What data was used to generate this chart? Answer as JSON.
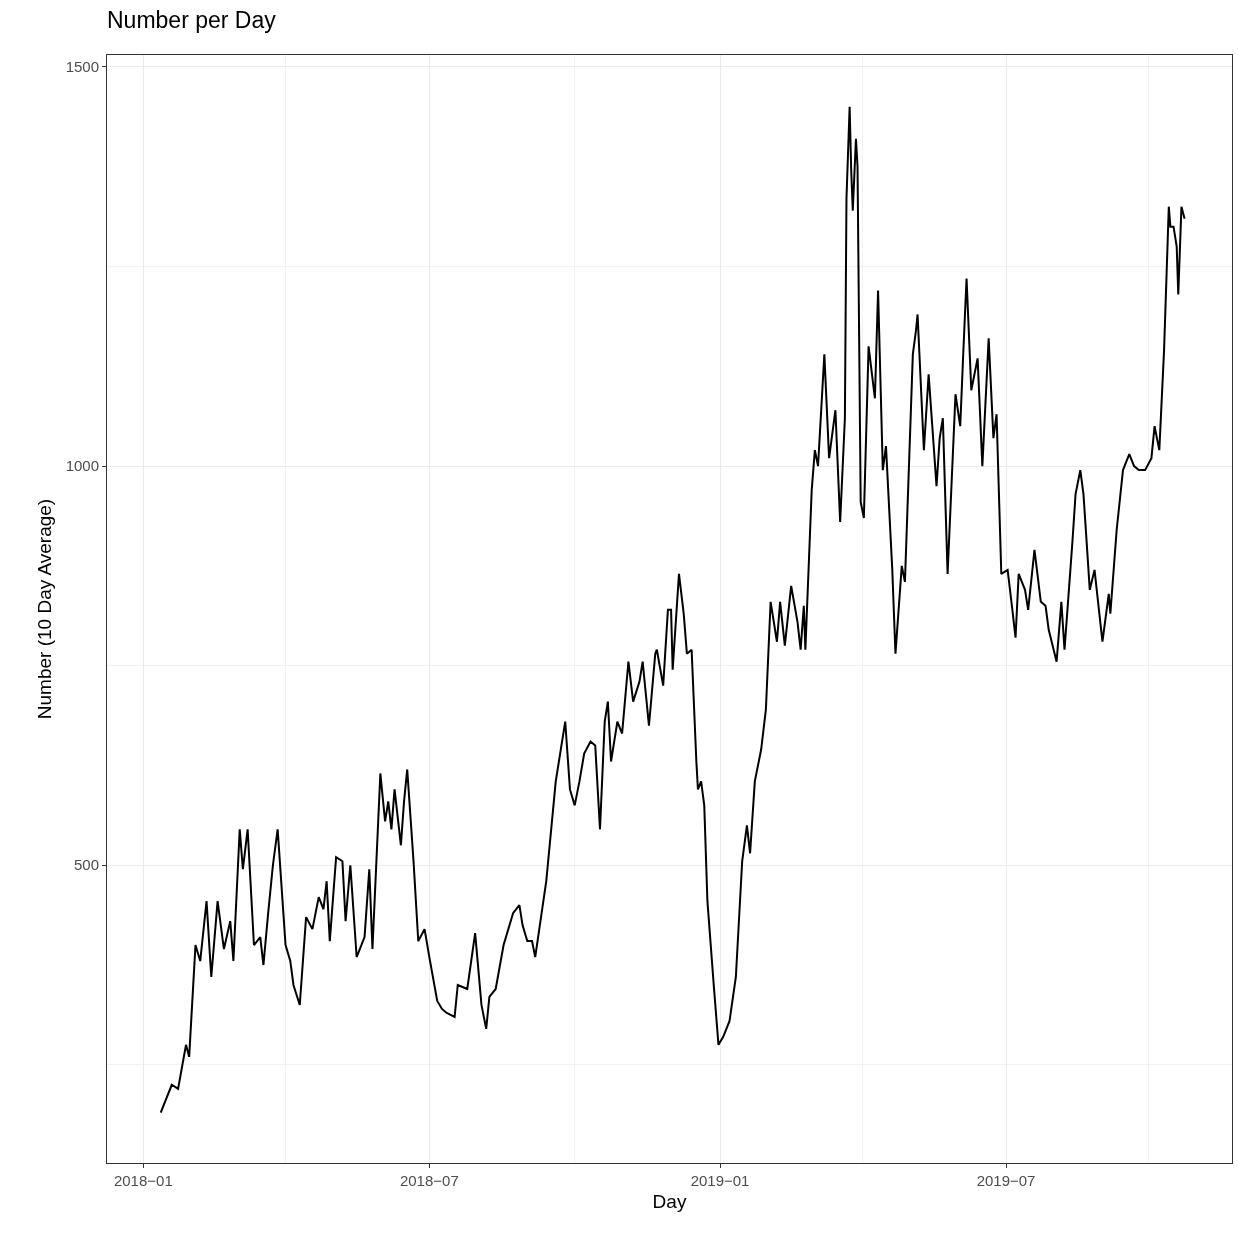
{
  "chart_data": {
    "type": "line",
    "title": "Number per Day",
    "xlabel": "Day",
    "ylabel": "Number (10 Day Average)",
    "xlim": [
      "2017-12-09",
      "2019-11-21"
    ],
    "ylim": [
      127,
      1515
    ],
    "xticks": [
      {
        "value": "2018-01-01",
        "label": "2018−01"
      },
      {
        "value": "2018-07-01",
        "label": "2018−07"
      },
      {
        "value": "2019-01-01",
        "label": "2019−01"
      },
      {
        "value": "2019-07-01",
        "label": "2019−07"
      }
    ],
    "yticks": [
      500,
      1000,
      1500
    ],
    "grid": true,
    "line_style": "solid",
    "marker": "none",
    "series": [
      {
        "color": "#000000",
        "x": [
          "2018-01-12",
          "2018-01-19",
          "2018-01-23",
          "2018-01-28",
          "2018-01-30",
          "2018-02-03",
          "2018-02-06",
          "2018-02-10",
          "2018-02-13",
          "2018-02-17",
          "2018-02-21",
          "2018-02-25",
          "2018-02-27",
          "2018-03-03",
          "2018-03-05",
          "2018-03-08",
          "2018-03-12",
          "2018-03-16",
          "2018-03-18",
          "2018-03-21",
          "2018-03-24",
          "2018-03-27",
          "2018-04-01",
          "2018-04-04",
          "2018-04-06",
          "2018-04-10",
          "2018-04-12",
          "2018-04-14",
          "2018-04-18",
          "2018-04-22",
          "2018-04-25",
          "2018-04-27",
          "2018-04-29",
          "2018-05-03",
          "2018-05-07",
          "2018-05-09",
          "2018-05-12",
          "2018-05-16",
          "2018-05-21",
          "2018-05-24",
          "2018-05-26",
          "2018-05-31",
          "2018-06-03",
          "2018-06-05",
          "2018-06-07",
          "2018-06-09",
          "2018-06-13",
          "2018-06-15",
          "2018-06-17",
          "2018-06-21",
          "2018-06-24",
          "2018-06-28",
          "2018-07-01",
          "2018-07-06",
          "2018-07-09",
          "2018-07-12",
          "2018-07-17",
          "2018-07-19",
          "2018-07-25",
          "2018-07-30",
          "2018-08-03",
          "2018-08-06",
          "2018-08-08",
          "2018-08-12",
          "2018-08-17",
          "2018-08-23",
          "2018-08-27",
          "2018-08-29",
          "2018-09-01",
          "2018-09-04",
          "2018-09-06",
          "2018-09-13",
          "2018-09-19",
          "2018-09-25",
          "2018-09-28",
          "2018-10-01",
          "2018-10-04",
          "2018-10-07",
          "2018-10-11",
          "2018-10-14",
          "2018-10-17",
          "2018-10-20",
          "2018-10-22",
          "2018-10-24",
          "2018-10-28",
          "2018-10-31",
          "2018-11-04",
          "2018-11-07",
          "2018-11-11",
          "2018-11-13",
          "2018-11-17",
          "2018-11-21",
          "2018-11-22",
          "2018-11-26",
          "2018-11-29",
          "2018-12-01",
          "2018-12-02",
          "2018-12-06",
          "2018-12-09",
          "2018-12-11",
          "2018-12-14",
          "2018-12-17",
          "2018-12-18",
          "2018-12-20",
          "2018-12-22",
          "2018-12-24",
          "2018-12-28",
          "2018-12-31",
          "2019-01-03",
          "2019-01-07",
          "2019-01-11",
          "2019-01-15",
          "2019-01-18",
          "2019-01-20",
          "2019-01-23",
          "2019-01-27",
          "2019-01-30",
          "2019-02-02",
          "2019-02-06",
          "2019-02-08",
          "2019-02-11",
          "2019-02-15",
          "2019-02-19",
          "2019-02-21",
          "2019-02-23",
          "2019-02-24",
          "2019-02-28",
          "2019-03-02",
          "2019-03-04",
          "2019-03-08",
          "2019-03-11",
          "2019-03-15",
          "2019-03-18",
          "2019-03-21",
          "2019-03-22",
          "2019-03-24",
          "2019-03-25",
          "2019-03-26",
          "2019-03-28",
          "2019-03-29",
          "2019-03-31",
          "2019-04-02",
          "2019-04-05",
          "2019-04-09",
          "2019-04-11",
          "2019-04-14",
          "2019-04-16",
          "2019-04-20",
          "2019-04-22",
          "2019-04-26",
          "2019-04-28",
          "2019-05-03",
          "2019-05-05",
          "2019-05-06",
          "2019-05-10",
          "2019-05-13",
          "2019-05-18",
          "2019-05-20",
          "2019-05-22",
          "2019-05-25",
          "2019-05-30",
          "2019-06-02",
          "2019-06-04",
          "2019-06-06",
          "2019-06-09",
          "2019-06-13",
          "2019-06-16",
          "2019-06-20",
          "2019-06-23",
          "2019-06-25",
          "2019-06-28",
          "2019-07-02",
          "2019-07-05",
          "2019-07-07",
          "2019-07-09",
          "2019-07-13",
          "2019-07-15",
          "2019-07-19",
          "2019-07-23",
          "2019-07-26",
          "2019-07-28",
          "2019-08-02",
          "2019-08-05",
          "2019-08-07",
          "2019-08-12",
          "2019-08-14",
          "2019-08-17",
          "2019-08-19",
          "2019-08-23",
          "2019-08-26",
          "2019-08-31",
          "2019-09-04",
          "2019-09-05",
          "2019-09-09",
          "2019-09-13",
          "2019-09-17",
          "2019-09-20",
          "2019-09-23",
          "2019-09-27",
          "2019-10-01",
          "2019-10-03",
          "2019-10-06",
          "2019-10-09",
          "2019-10-12",
          "2019-10-13",
          "2019-10-15",
          "2019-10-17",
          "2019-10-18",
          "2019-10-20",
          "2019-10-22"
        ],
        "values": [
          190,
          225,
          220,
          275,
          260,
          400,
          380,
          455,
          360,
          455,
          395,
          430,
          380,
          545,
          495,
          545,
          400,
          410,
          375,
          440,
          500,
          545,
          400,
          380,
          350,
          325,
          380,
          435,
          420,
          460,
          445,
          480,
          405,
          510,
          505,
          430,
          500,
          385,
          410,
          495,
          395,
          615,
          555,
          580,
          545,
          595,
          525,
          580,
          620,
          505,
          405,
          420,
          385,
          330,
          320,
          315,
          310,
          350,
          345,
          415,
          325,
          295,
          335,
          345,
          400,
          440,
          450,
          425,
          405,
          405,
          385,
          480,
          605,
          680,
          595,
          575,
          605,
          640,
          655,
          650,
          545,
          680,
          705,
          630,
          680,
          665,
          755,
          705,
          730,
          755,
          675,
          765,
          770,
          725,
          820,
          820,
          745,
          865,
          815,
          765,
          770,
          630,
          595,
          605,
          575,
          455,
          350,
          275,
          285,
          305,
          360,
          505,
          550,
          515,
          605,
          645,
          695,
          830,
          780,
          830,
          775,
          850,
          805,
          770,
          825,
          770,
          970,
          1020,
          1000,
          1140,
          1010,
          1070,
          930,
          1060,
          1335,
          1450,
          1370,
          1320,
          1410,
          1375,
          955,
          935,
          1150,
          1085,
          1220,
          995,
          1025,
          870,
          765,
          875,
          855,
          1140,
          1170,
          1190,
          1020,
          1115,
          975,
          1035,
          1060,
          865,
          1090,
          1050,
          1145,
          1235,
          1095,
          1135,
          1000,
          1160,
          1035,
          1065,
          865,
          870,
          820,
          785,
          865,
          845,
          820,
          895,
          830,
          825,
          795,
          755,
          830,
          770,
          905,
          965,
          995,
          965,
          845,
          870,
          780,
          840,
          815,
          920,
          995,
          1015,
          1000,
          995,
          995,
          1010,
          1050,
          1020,
          1145,
          1325,
          1300,
          1300,
          1275,
          1215,
          1325,
          1310
        ]
      }
    ]
  }
}
